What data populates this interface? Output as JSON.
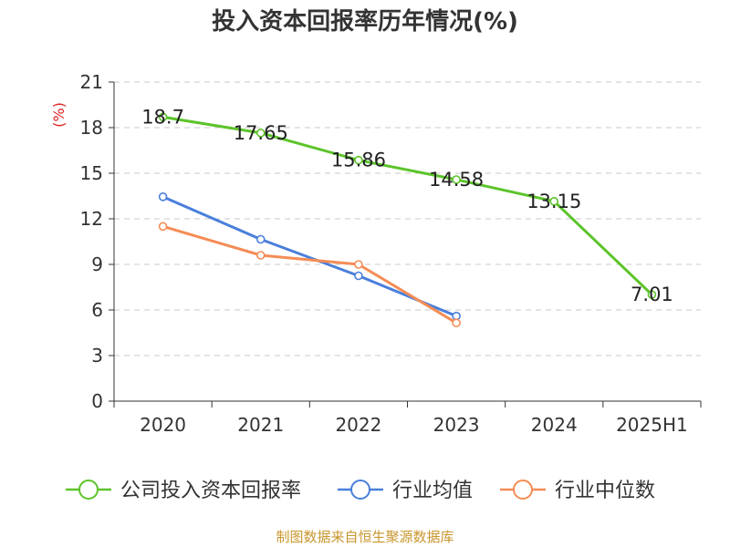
{
  "chart_data": {
    "type": "line",
    "title": "投入资本回报率历年情况(%)",
    "ylabel": "(%)",
    "xlabel": "",
    "categories": [
      "2020",
      "2021",
      "2022",
      "2023",
      "2024",
      "2025H1"
    ],
    "ylim": [
      0,
      21
    ],
    "yticks": [
      0,
      3,
      6,
      9,
      12,
      15,
      18,
      21
    ],
    "grid": true,
    "legend_position": "bottom",
    "series": [
      {
        "name": "公司投入资本回报率",
        "color": "#5cc42a",
        "values": [
          18.7,
          17.65,
          15.86,
          14.58,
          13.15,
          7.01
        ],
        "labels": [
          "18.7",
          "17.65",
          "15.86",
          "14.58",
          "13.15",
          "7.01"
        ]
      },
      {
        "name": "行业均值",
        "color": "#4a7fdb",
        "values": [
          13.45,
          10.65,
          8.25,
          5.6,
          null,
          null
        ]
      },
      {
        "name": "行业中位数",
        "color": "#f58c55",
        "values": [
          11.5,
          9.6,
          9.0,
          5.15,
          null,
          null
        ]
      }
    ]
  },
  "source": "制图数据来自恒生聚源数据库"
}
